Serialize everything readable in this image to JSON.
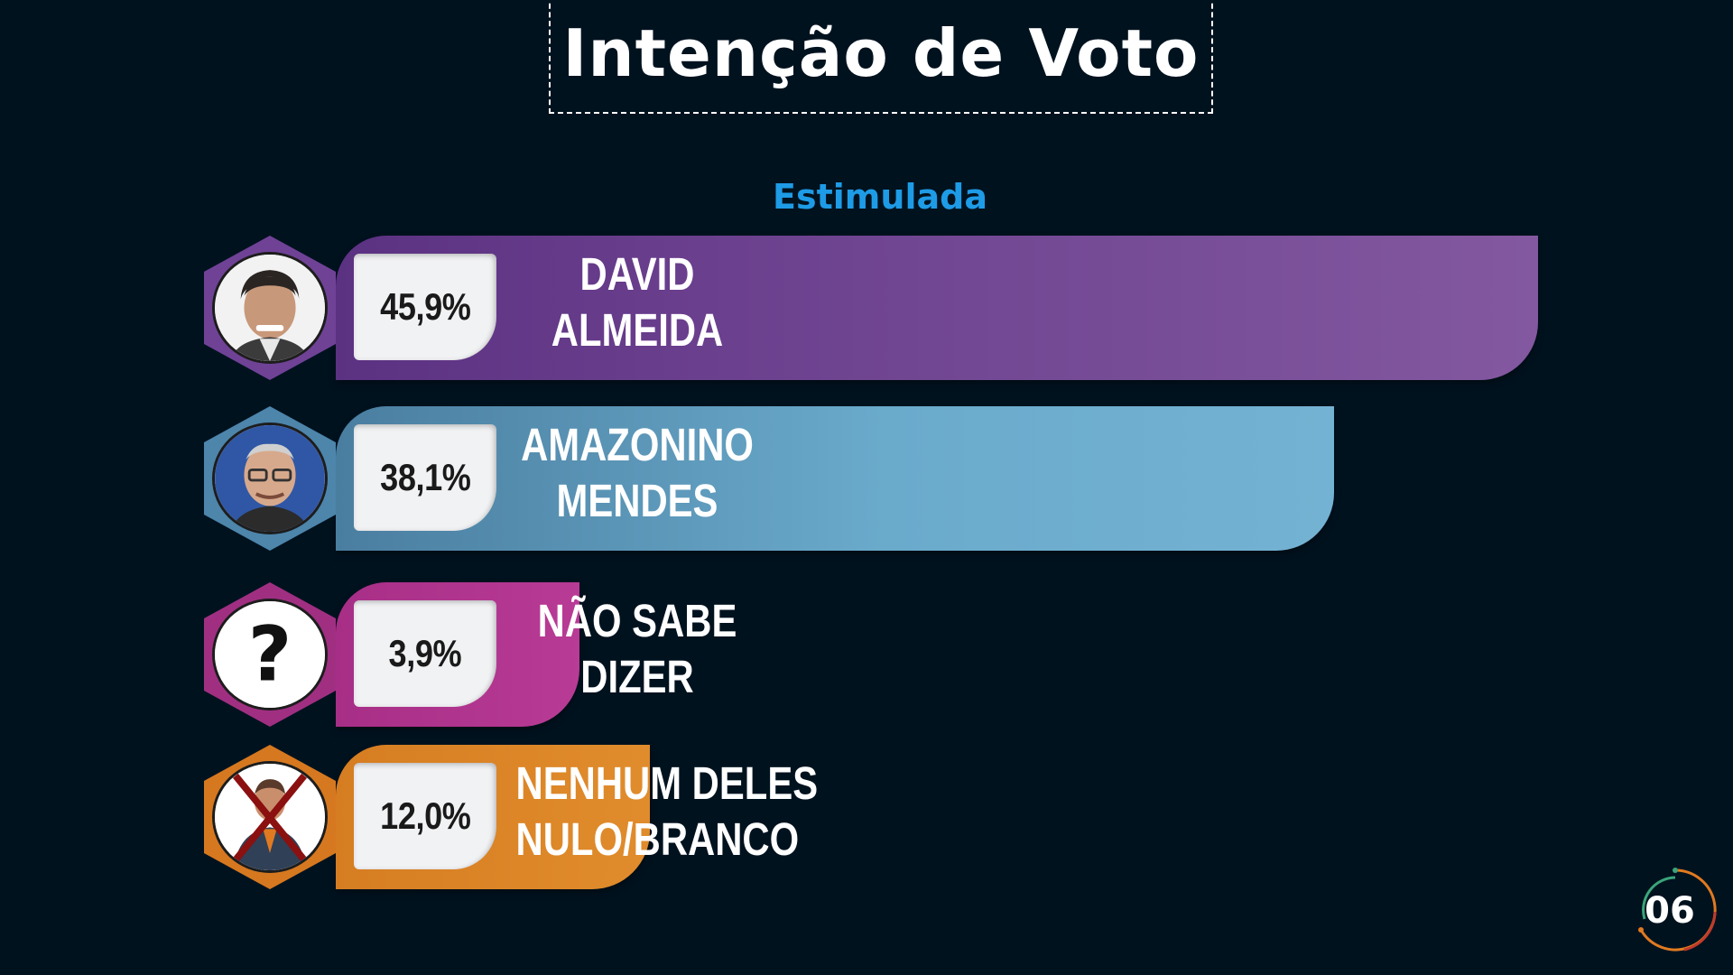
{
  "title": "Intenção de Voto",
  "subtitle": "Estimulada",
  "page_number": "06",
  "rows": [
    {
      "pct": "45,9%",
      "line1": "DAVID",
      "line2": "ALMEIDA",
      "color": "#7a4d9c",
      "icon": "candidate-photo-icon"
    },
    {
      "pct": "38,1%",
      "line1": "AMAZONINO",
      "line2": "MENDES",
      "color": "#5d9cc2",
      "icon": "candidate-photo-icon"
    },
    {
      "pct": "3,9%",
      "line1": "NÃO SABE",
      "line2": "DIZER",
      "color": "#b5358e",
      "icon": "question-mark-icon"
    },
    {
      "pct": "12,0%",
      "line1": "NENHUM DELES",
      "line2": "NULO/BRANCO",
      "color": "#e0882a",
      "icon": "crossed-person-icon"
    }
  ],
  "chart_data": {
    "type": "bar",
    "orientation": "horizontal",
    "title": "Intenção de Voto",
    "subtitle": "Estimulada",
    "categories": [
      "DAVID ALMEIDA",
      "AMAZONINO MENDES",
      "NÃO SABE DIZER",
      "NENHUM DELES NULO/BRANCO"
    ],
    "values": [
      45.9,
      38.1,
      3.9,
      12.0
    ],
    "value_labels": [
      "45,9%",
      "38,1%",
      "3,9%",
      "12,0%"
    ],
    "colors": [
      "#7a4d9c",
      "#5d9cc2",
      "#b5358e",
      "#e0882a"
    ],
    "grid": false,
    "legend": "none"
  }
}
